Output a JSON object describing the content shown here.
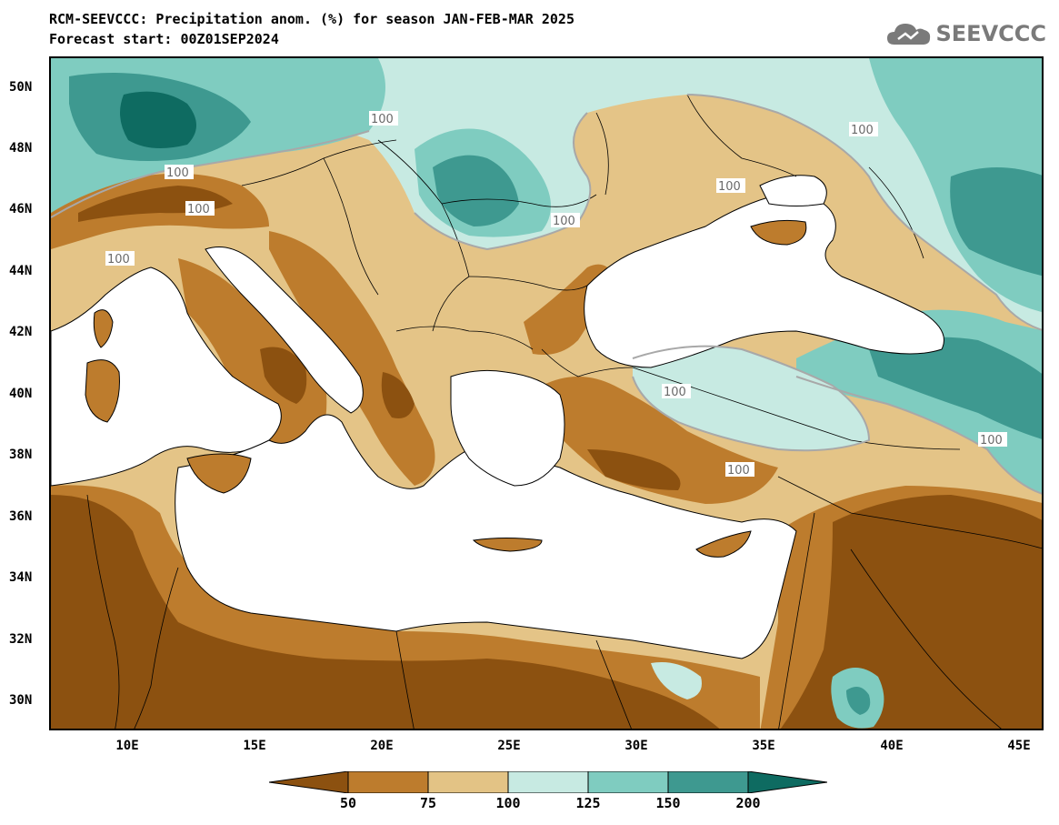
{
  "title": {
    "line1": "RCM-SEEVCCC: Precipitation anom. (%) for season JAN-FEB-MAR 2025",
    "line2": "Forecast start: 00Z01SEP2024"
  },
  "logo": {
    "text": "SEEVCCC",
    "icon": "cloud-logo-icon"
  },
  "axes": {
    "lat_labels": [
      "50N",
      "48N",
      "46N",
      "44N",
      "42N",
      "40N",
      "38N",
      "36N",
      "34N",
      "32N",
      "30N"
    ],
    "lon_labels": [
      "10E",
      "15E",
      "20E",
      "25E",
      "30E",
      "35E",
      "40E",
      "45E"
    ]
  },
  "contour_labels": [
    "100",
    "100",
    "100",
    "100",
    "100",
    "100",
    "100",
    "100",
    "100",
    "100"
  ],
  "colorbar": {
    "labels": [
      "50",
      "75",
      "100",
      "125",
      "150",
      "200"
    ],
    "colors": [
      "#8c5110",
      "#bd7c2d",
      "#e3c385",
      "#c7eae2",
      "#7fccc0",
      "#3e9990",
      "#0e6b61"
    ]
  },
  "colors": {
    "sea": "#ffffff",
    "dark_brown": "#8c5110",
    "brown": "#bd7c2d",
    "tan": "#e3c385",
    "light_teal": "#c7eae2",
    "teal": "#7fccc0",
    "dark_teal": "#3e9990",
    "darkest_teal": "#0e6b61"
  }
}
